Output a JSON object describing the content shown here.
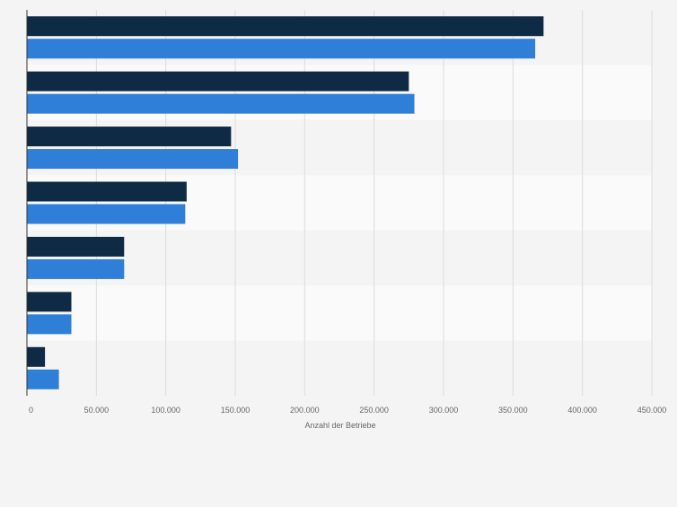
{
  "chart_data": {
    "type": "bar",
    "orientation": "horizontal",
    "categories": [
      "",
      "",
      "",
      "",
      "",
      "",
      ""
    ],
    "series": [
      {
        "color": "#0f2a44",
        "values": [
          372000,
          275000,
          147000,
          115000,
          70000,
          32000,
          13000
        ]
      },
      {
        "color": "#2f7ed8",
        "values": [
          366000,
          279000,
          152000,
          114000,
          70000,
          32000,
          23000
        ]
      }
    ],
    "xlabel": "Anzahl der Betriebe",
    "xlim": [
      0,
      450000
    ],
    "xticks": [
      0,
      50000,
      100000,
      150000,
      200000,
      250000,
      300000,
      350000,
      400000,
      450000
    ],
    "xtick_labels": [
      "0",
      "50.000",
      "100.000",
      "150.000",
      "200.000",
      "250.000",
      "300.000",
      "350.000",
      "400.000",
      "450.000"
    ],
    "grid": true,
    "legend": "none"
  }
}
